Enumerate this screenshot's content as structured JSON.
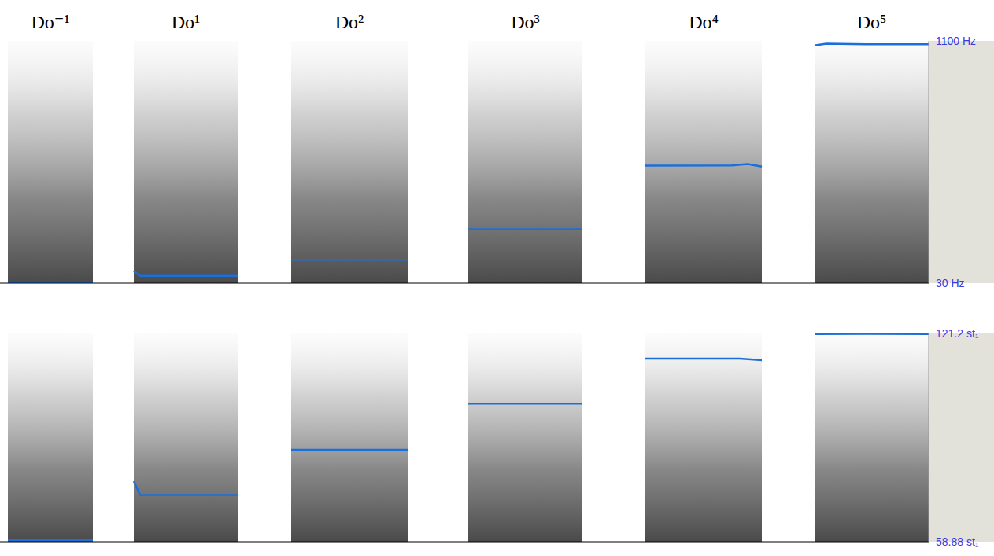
{
  "chart_data": [
    {
      "type": "line",
      "xlim": [
        0,
        11.8
      ],
      "ylim": [
        30,
        1100
      ],
      "yticks": [
        {
          "value": 30,
          "label": "30 Hz"
        },
        {
          "value": 1100,
          "label": "1100 Hz"
        }
      ],
      "tick_labels": "y",
      "grid": false,
      "series": [
        {
          "name": "Do⁻¹",
          "color": "#1a6fdc",
          "x": [
            0.1,
            1.18
          ],
          "values": [
            32,
            32
          ]
        },
        {
          "name": "Do¹",
          "color": "#1a6fdc",
          "x": [
            1.7,
            1.78,
            3.02
          ],
          "values": [
            83,
            62,
            62
          ]
        },
        {
          "name": "Do²",
          "color": "#1a6fdc",
          "x": [
            3.7,
            5.18
          ],
          "values": [
            133,
            133
          ]
        },
        {
          "name": "Do³",
          "color": "#1a6fdc",
          "x": [
            5.95,
            7.4
          ],
          "values": [
            268,
            268
          ]
        },
        {
          "name": "Do⁴",
          "color": "#1a6fdc",
          "x": [
            8.2,
            9.3,
            9.5,
            9.68
          ],
          "values": [
            549,
            550,
            556,
            545
          ]
        },
        {
          "name": "Do⁵",
          "color": "#1a6fdc",
          "x": [
            10.35,
            10.5,
            11.0,
            11.8
          ],
          "values": [
            1080,
            1088,
            1085,
            1085
          ]
        }
      ]
    },
    {
      "type": "line",
      "xlim": [
        0,
        11.8
      ],
      "ylim": [
        58.88,
        121.2
      ],
      "yticks": [
        {
          "value": 58.88,
          "label": "58.88 st₁"
        },
        {
          "value": 121.2,
          "label": "121.2 st₁"
        }
      ],
      "tick_labels": "y",
      "grid": false,
      "series": [
        {
          "color": "#1a6fdc",
          "x": [
            0.1,
            1.18
          ],
          "values": [
            59.3,
            59.3
          ]
        },
        {
          "color": "#1a6fdc",
          "x": [
            1.7,
            1.78,
            3.02
          ],
          "values": [
            77.0,
            72.9,
            72.9
          ]
        },
        {
          "color": "#1a6fdc",
          "x": [
            3.7,
            5.18
          ],
          "values": [
            86.4,
            86.4
          ]
        },
        {
          "color": "#1a6fdc",
          "x": [
            5.95,
            7.4
          ],
          "values": [
            100.2,
            100.2
          ]
        },
        {
          "color": "#1a6fdc",
          "x": [
            8.2,
            9.4,
            9.68
          ],
          "values": [
            113.7,
            113.7,
            113.2
          ]
        },
        {
          "color": "#1a6fdc",
          "x": [
            10.35,
            11.0,
            11.8
          ],
          "values": [
            121.0,
            121.1,
            121.0
          ]
        }
      ]
    }
  ]
}
